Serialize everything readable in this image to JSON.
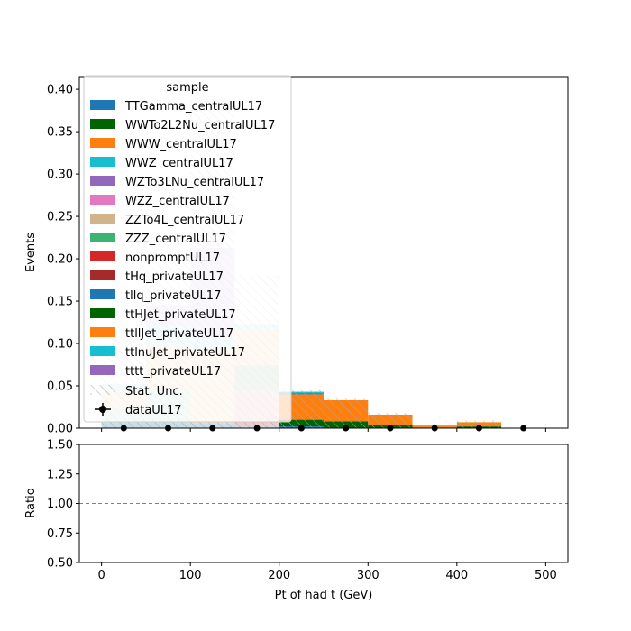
{
  "chart_data": {
    "type": "bar",
    "stacked": true,
    "x_bin_width": 50,
    "bin_centers": [
      25,
      75,
      125,
      175,
      225,
      275,
      325,
      375,
      425,
      475
    ],
    "xlabel": "Pt of had t (GeV)",
    "xticks": [
      "0",
      "100",
      "200",
      "300",
      "400",
      "500"
    ],
    "xlim": [
      -25,
      525
    ],
    "top_panel": {
      "ylabel": "Events",
      "ylim": [
        0,
        0.415
      ],
      "yticks": [
        "0.00",
        "0.05",
        "0.10",
        "0.15",
        "0.20",
        "0.25",
        "0.30",
        "0.35",
        "0.40"
      ]
    },
    "ratio_panel": {
      "ylabel": "Ratio",
      "ylim": [
        0.5,
        1.5
      ],
      "yticks": [
        "0.50",
        "0.75",
        "1.00",
        "1.25",
        "1.50"
      ],
      "reference_line": 1.0
    },
    "legend": {
      "title": "sample",
      "placement": "upper-left",
      "stat_label": "Stat. Unc.",
      "data_label": "dataUL17"
    },
    "series": [
      {
        "name": "TTGamma_centralUL17",
        "color": "#1f77b4",
        "values": [
          0.006,
          0.006,
          0.006,
          0.002,
          0.002,
          0.0,
          0.0,
          0.0,
          0.0,
          0.0
        ]
      },
      {
        "name": "WWTo2L2Nu_centralUL17",
        "color": "#006400",
        "values": [
          0.0,
          0.0,
          0.0,
          0.0,
          0.008,
          0.008,
          0.004,
          0.0,
          0.002,
          0.0
        ]
      },
      {
        "name": "WWW_centralUL17",
        "color": "#ff7f0e",
        "values": [
          0.0,
          0.0,
          0.0,
          0.0,
          0.03,
          0.025,
          0.012,
          0.003,
          0.005,
          0.0
        ]
      },
      {
        "name": "WWZ_centralUL17",
        "color": "#17becf",
        "values": [
          0.0,
          0.0,
          0.0,
          0.0,
          0.0,
          0.0,
          0.0,
          0.0,
          0.0,
          0.0
        ]
      },
      {
        "name": "WZTo3LNu_centralUL17",
        "color": "#9467bd",
        "values": [
          0.0,
          0.0,
          0.0,
          0.0,
          0.0,
          0.0,
          0.0,
          0.0,
          0.0,
          0.0
        ]
      },
      {
        "name": "WZZ_centralUL17",
        "color": "#e377c2",
        "values": [
          0.0,
          0.0,
          0.0,
          0.0,
          0.0,
          0.0,
          0.0,
          0.0,
          0.0,
          0.0
        ]
      },
      {
        "name": "ZZTo4L_centralUL17",
        "color": "#d2b48c",
        "values": [
          0.0,
          0.0,
          0.0,
          0.0,
          0.0,
          0.0,
          0.0,
          0.0,
          0.0,
          0.0
        ]
      },
      {
        "name": "ZZZ_centralUL17",
        "color": "#3cb371",
        "values": [
          0.017,
          0.04,
          0.0,
          0.0,
          0.0,
          0.0,
          0.0,
          0.0,
          0.0,
          0.0
        ]
      },
      {
        "name": "nonpromptUL17",
        "color": "#d62728",
        "values": [
          0.0,
          0.0,
          0.0,
          0.042,
          0.0,
          0.0,
          0.0,
          0.0,
          0.0,
          0.0
        ]
      },
      {
        "name": "tHq_privateUL17",
        "color": "#a52a2a",
        "values": [
          0.0,
          0.0,
          0.0,
          0.0,
          0.0,
          0.0,
          0.0,
          0.0,
          0.0,
          0.0
        ]
      },
      {
        "name": "tllq_privateUL17",
        "color": "#1f77b4",
        "values": [
          0.0,
          0.0,
          0.0,
          0.0,
          0.001,
          0.0,
          0.0,
          0.0,
          0.0,
          0.0
        ]
      },
      {
        "name": "ttHJet_privateUL17",
        "color": "#006400",
        "values": [
          0.0,
          0.0,
          0.0,
          0.03,
          0.0,
          0.0,
          0.0,
          0.0,
          0.0,
          0.0
        ]
      },
      {
        "name": "ttllJet_privateUL17",
        "color": "#ff7f0e",
        "values": [
          0.02,
          0.052,
          0.087,
          0.043,
          0.0,
          0.0,
          0.0,
          0.0,
          0.0,
          0.0
        ]
      },
      {
        "name": "ttlnuJet_privateUL17",
        "color": "#17becf",
        "values": [
          0.009,
          0.022,
          0.014,
          0.006,
          0.002,
          0.0,
          0.0,
          0.0,
          0.0,
          0.0
        ]
      },
      {
        "name": "tttt_privateUL17",
        "color": "#9467bd",
        "values": [
          0.0,
          0.025,
          0.106,
          0.0,
          0.0,
          0.0,
          0.0,
          0.0,
          0.0,
          0.0
        ]
      }
    ],
    "stat_unc_band": {
      "lower": [
        0.0,
        0.0,
        0.0,
        0.0,
        0.0,
        0.0,
        0.0,
        0.0,
        0.0,
        0.0
      ],
      "upper": [
        0.1,
        0.2,
        0.39,
        0.18,
        0.045,
        0.035,
        0.018,
        0.004,
        0.009,
        0.0
      ]
    },
    "data_points": [
      0,
      0,
      0,
      0,
      0,
      0,
      0,
      0,
      0,
      0
    ]
  }
}
